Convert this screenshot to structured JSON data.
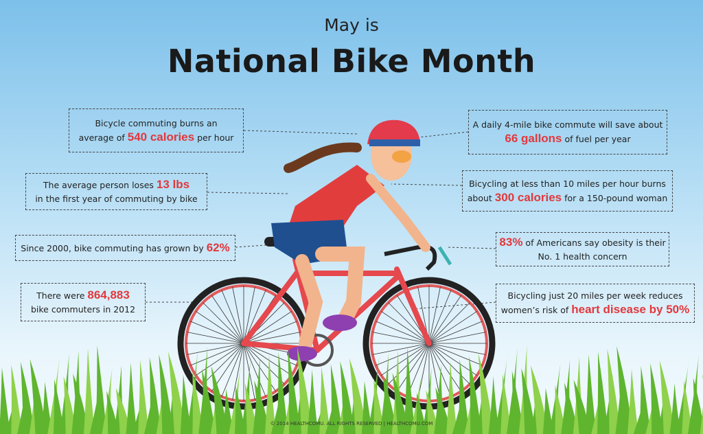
{
  "header": {
    "kicker": "May is",
    "title": "National Bike Month"
  },
  "facts": [
    {
      "lines": [
        [
          {
            "text": "Bicycle commuting burns an"
          }
        ],
        [
          {
            "text": "average of "
          },
          {
            "text": "540 calories",
            "color": "#e2383c"
          },
          {
            "text": " per hour"
          }
        ]
      ]
    },
    {
      "lines": [
        [
          {
            "text": "The average person loses "
          },
          {
            "text": "13 lbs",
            "color": "#e2383c"
          }
        ],
        [
          {
            "text": "in the first year of commuting by bike"
          }
        ]
      ]
    },
    {
      "lines": [
        [
          {
            "text": "Since 2000, bike commuting has grown by "
          },
          {
            "text": "62%",
            "color": "#e2383c"
          }
        ]
      ]
    },
    {
      "lines": [
        [
          {
            "text": "There were "
          },
          {
            "text": "864,883",
            "color": "#e2383c"
          }
        ],
        [
          {
            "text": "bike commuters in 2012"
          }
        ]
      ]
    },
    {
      "lines": [
        [
          {
            "text": "A daily 4-mile bike commute will save about"
          }
        ],
        [
          {
            "text": "66 gallons",
            "color": "#e2383c"
          },
          {
            "text": " of fuel per year"
          }
        ]
      ]
    },
    {
      "lines": [
        [
          {
            "text": "Bicycling at less than 10 miles per hour burns"
          }
        ],
        [
          {
            "text": "about "
          },
          {
            "text": "300 calories",
            "color": "#e2383c"
          },
          {
            "text": " for a 150-pound woman"
          }
        ]
      ]
    },
    {
      "lines": [
        [
          {
            "text": "83%",
            "color": "#e2383c"
          },
          {
            "text": " of Americans say obesity is their"
          }
        ],
        [
          {
            "text": "No. 1 health concern"
          }
        ]
      ]
    },
    {
      "lines": [
        [
          {
            "text": "Bicycling just 20 miles per week reduces"
          }
        ],
        [
          {
            "text": "women’s risk of "
          },
          {
            "text": "heart disease by 50%",
            "color": "#e2383c"
          }
        ]
      ]
    }
  ],
  "footer": "© 2014 HEALTHCOMU. ALL RIGHTS RESERVED | HEALTHCOMU.COM"
}
